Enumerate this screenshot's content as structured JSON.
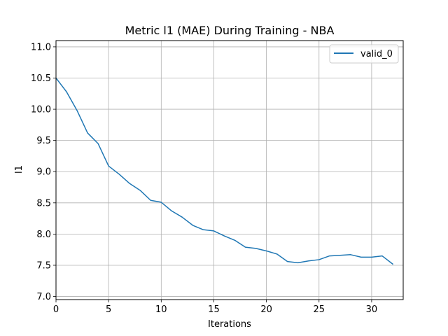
{
  "chart_data": {
    "type": "line",
    "title": "Metric l1 (MAE) During Training - NBA",
    "xlabel": "Iterations",
    "ylabel": "l1",
    "xlim": [
      0,
      33
    ],
    "ylim": [
      6.95,
      11.1
    ],
    "x_ticks": [
      0,
      5,
      10,
      15,
      20,
      25,
      30
    ],
    "y_ticks": [
      7.0,
      7.5,
      8.0,
      8.5,
      9.0,
      9.5,
      10.0,
      10.5,
      11.0
    ],
    "x_tick_labels": [
      "0",
      "5",
      "10",
      "15",
      "20",
      "25",
      "30"
    ],
    "y_tick_labels": [
      "7.0",
      "7.5",
      "8.0",
      "8.5",
      "9.0",
      "9.5",
      "10.0",
      "10.5",
      "11.0"
    ],
    "grid": true,
    "legend_position": "top-right",
    "series": [
      {
        "name": "valid_0",
        "color": "#1f77b4",
        "x": [
          0,
          1,
          2,
          3,
          4,
          5,
          6,
          7,
          8,
          9,
          10,
          11,
          12,
          13,
          14,
          15,
          16,
          17,
          18,
          19,
          20,
          21,
          22,
          23,
          24,
          25,
          26,
          27,
          28,
          29,
          30,
          31,
          32
        ],
        "values": [
          10.5,
          10.28,
          9.98,
          9.62,
          9.45,
          9.09,
          8.96,
          8.81,
          8.7,
          8.54,
          8.51,
          8.37,
          8.27,
          8.14,
          8.07,
          8.05,
          7.97,
          7.9,
          7.79,
          7.77,
          7.73,
          7.68,
          7.56,
          7.54,
          7.57,
          7.59,
          7.65,
          7.66,
          7.67,
          7.63,
          7.63,
          7.65,
          7.52
        ]
      }
    ]
  }
}
